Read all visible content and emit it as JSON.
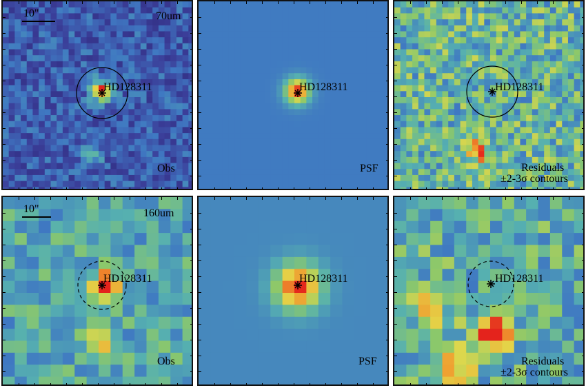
{
  "panels": {
    "obs_70": {
      "band": "70um",
      "scale": "10\"",
      "target": "HD128311",
      "kind": "Obs"
    },
    "psf_70": {
      "target": "HD128311",
      "kind": "PSF"
    },
    "res_70": {
      "target": "HD128311",
      "kind": "Residuals",
      "contours": "±2-3σ contours"
    },
    "obs_160": {
      "band": "160um",
      "scale": "10\"",
      "target": "HD128311",
      "kind": "Obs"
    },
    "psf_160": {
      "target": "HD128311",
      "kind": "PSF"
    },
    "res_160": {
      "target": "HD128311",
      "kind": "Residuals",
      "contours": "±2-3σ contours"
    }
  },
  "colors": {
    "low": "#2b2f8a",
    "mid": "#3d7fc7",
    "green": "#6fbf6a",
    "yellow": "#e6d84a",
    "orange": "#f08a2a",
    "peak": "#e8281e"
  }
}
